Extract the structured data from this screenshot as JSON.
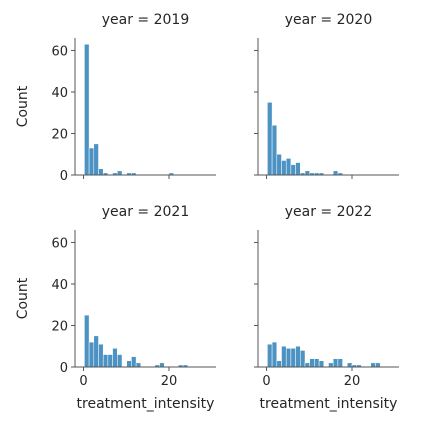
{
  "chart_data": {
    "type": "bar",
    "subtype": "histogram-facet-grid",
    "bar_color": "#4c92c3",
    "bar_edge": "#ffffff",
    "xlabel": "treatment_intensity",
    "ylabel": "Count",
    "xlim": [
      -2,
      31
    ],
    "ylim": [
      0,
      66
    ],
    "x_ticks": [
      0,
      20
    ],
    "y_ticks": [
      0,
      20,
      40,
      60
    ],
    "bin_width": 1.1,
    "panels": [
      {
        "title": "year = 2019",
        "bin_start": 0.2,
        "counts": [
          63,
          13,
          15,
          3,
          1,
          0,
          1,
          2,
          0,
          1,
          1,
          0,
          0,
          0,
          0,
          0,
          0,
          0,
          1
        ]
      },
      {
        "title": "year = 2020",
        "bin_start": 0.2,
        "counts": [
          35,
          24,
          10,
          7,
          8,
          5,
          6,
          1,
          2,
          1,
          1,
          1,
          0,
          0,
          2,
          1
        ]
      },
      {
        "title": "year = 2021",
        "bin_start": 0.2,
        "counts": [
          25,
          12,
          15,
          11,
          6,
          6,
          9,
          6,
          0,
          3,
          5,
          2,
          0,
          0,
          0,
          1,
          2,
          0,
          0,
          0,
          1,
          1
        ]
      },
      {
        "title": "year = 2022",
        "bin_start": 0.2,
        "counts": [
          11,
          12,
          3,
          10,
          9,
          9,
          10,
          8,
          2,
          4,
          4,
          3,
          0,
          2,
          4,
          4,
          0,
          2,
          1,
          1,
          0,
          0,
          2,
          2
        ]
      }
    ]
  }
}
